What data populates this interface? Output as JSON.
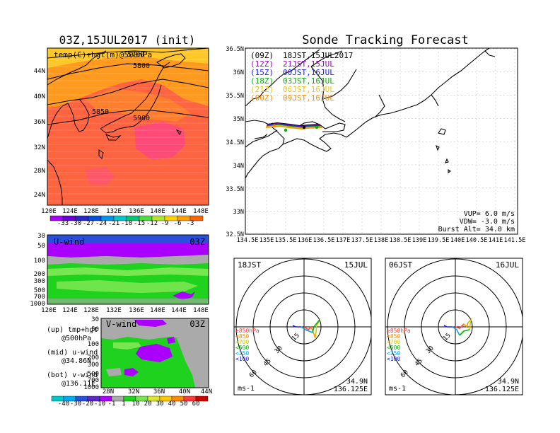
{
  "left_title": "03Z,15JUL2017 (init)",
  "right_title": "Sonde Tracking Forecast",
  "temp_map": {
    "label": "temp(C)+hgt(m)@500hPa",
    "contours": [
      "5700",
      "5800",
      "5850",
      "5900"
    ],
    "lat_ticks": [
      "44N",
      "40N",
      "36N",
      "32N",
      "28N",
      "24N"
    ],
    "lon_ticks": [
      "120E",
      "124E",
      "128E",
      "132E",
      "136E",
      "140E",
      "144E",
      "148E"
    ],
    "colorbar": {
      "labels": [
        "-33",
        "-30",
        "-27",
        "-24",
        "-21",
        "-18",
        "-15",
        "-12",
        "-9",
        "-6",
        "-3"
      ],
      "colors": [
        "#aa00ff",
        "#6a00d8",
        "#2828c8",
        "#0050e0",
        "#0096f0",
        "#00c8c8",
        "#00c878",
        "#50dc3c",
        "#b4e628",
        "#ffd200",
        "#ffa000",
        "#ff6400"
      ]
    }
  },
  "uwind": {
    "label": "U-wind",
    "time": "03Z",
    "p_ticks": [
      "30",
      "50",
      "100",
      "200",
      "300",
      "500",
      "700",
      "1000"
    ],
    "lon_ticks": [
      "120E",
      "124E",
      "128E",
      "132E",
      "136E",
      "140E",
      "144E",
      "148E"
    ]
  },
  "vwind": {
    "label": "V-wind",
    "time": "03Z",
    "p_ticks": [
      "30",
      "50",
      "100",
      "200",
      "300",
      "500",
      "700",
      "1000"
    ],
    "lat_ticks": [
      "28N",
      "32N",
      "36N",
      "40N",
      "44N"
    ]
  },
  "legend_notes": [
    {
      "head": "(up) tmp+hgt",
      "sub": "@500hPa"
    },
    {
      "head": "(mid) u-wind",
      "sub": "@34.86N"
    },
    {
      "head": "(bot) v-wind",
      "sub": "@136.11E"
    }
  ],
  "wind_colorbar": {
    "labels": [
      "-40",
      "-30",
      "-20",
      "-10",
      "-1",
      "1",
      "10",
      "20",
      "30",
      "40",
      "50",
      "60"
    ],
    "colors": [
      "#00c8c8",
      "#00aaf0",
      "#2850dc",
      "#5a28c8",
      "#aa00ff",
      "#aaaaaa",
      "#1ed21e",
      "#78e650",
      "#dce632",
      "#ffc800",
      "#ff8c00",
      "#ff3c3c",
      "#d20000"
    ]
  },
  "track_map": {
    "lat_ticks": [
      "36.5N",
      "36N",
      "35.5N",
      "35N",
      "34.5N",
      "34N",
      "33.5N",
      "33N",
      "32.5N"
    ],
    "lon_ticks": [
      "134.5E",
      "135E",
      "135.5E",
      "136E",
      "136.5E",
      "137E",
      "137.5E",
      "138E",
      "138.5E",
      "139E",
      "139.5E",
      "140E",
      "140.5E",
      "141E",
      "141.5E"
    ],
    "launches": [
      {
        "code": "(09Z)",
        "time": "18JST,15JUL2017",
        "color": "#000000"
      },
      {
        "code": "(12Z)",
        "time": "21JST,15JUL",
        "color": "#9b00c8"
      },
      {
        "code": "(15Z)",
        "time": "00JST,16JUL",
        "color": "#1e1eff"
      },
      {
        "code": "(18Z)",
        "time": "03JST,16JUL",
        "color": "#00b400"
      },
      {
        "code": "(21Z)",
        "time": "06JST,16JUL",
        "color": "#f0c800"
      },
      {
        "code": "(00Z)",
        "time": "09JST,16JUL",
        "color": "#ff8c00"
      }
    ],
    "stats": [
      "VUP=  6.0 m/s",
      "VDW= -3.0 m/s",
      "Burst Alt= 34.0 km"
    ]
  },
  "hodographs": [
    {
      "time": "18JST",
      "date": "15JUL",
      "ring_labels": [
        "15",
        "30",
        "45",
        "60"
      ],
      "levels": [
        {
          "label": "≥850hPa",
          "color": "#ff3c3c"
        },
        {
          "label": "<850",
          "color": "#ff8c00"
        },
        {
          "label": "<700",
          "color": "#d2c800"
        },
        {
          "label": "<500",
          "color": "#00b400"
        },
        {
          "label": "<250",
          "color": "#00aaf0"
        },
        {
          "label": "<100",
          "color": "#1e1eff"
        }
      ],
      "units": "ms-1",
      "lat": "34.9N",
      "lon": "136.125E"
    },
    {
      "time": "06JST",
      "date": "16JUL",
      "ring_labels": [
        "15",
        "30",
        "45",
        "60"
      ],
      "levels": [
        {
          "label": "≥850hPa",
          "color": "#ff3c3c"
        },
        {
          "label": "<850",
          "color": "#ff8c00"
        },
        {
          "label": "<700",
          "color": "#d2c800"
        },
        {
          "label": "<500",
          "color": "#00b400"
        },
        {
          "label": "<250",
          "color": "#00aaf0"
        },
        {
          "label": "<100",
          "color": "#1e1eff"
        }
      ],
      "units": "ms-1",
      "lat": "34.9N",
      "lon": "136.125E"
    }
  ]
}
